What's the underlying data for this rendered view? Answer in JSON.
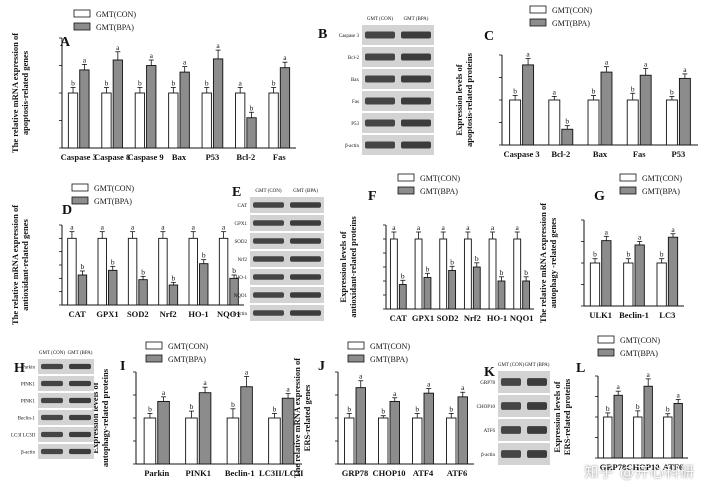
{
  "legend": {
    "con": "GMT(CON)",
    "bpa": "GMT(BPA)"
  },
  "colors": {
    "con": "#ffffff",
    "bpa": "#8c8c8c",
    "stroke": "#111111"
  },
  "watermark": "知乎 @开心科研",
  "chart_data": [
    {
      "id": "A",
      "type": "bar",
      "panel_label": "A",
      "ylabel": "The relative mRNA expression of apoptosis-related genes",
      "categories": [
        "Caspase 3",
        "Caspase 8",
        "Caspase 9",
        "Bax",
        "P53",
        "Bcl-2",
        "Fas"
      ],
      "ylim": [
        0,
        2.0
      ],
      "series": [
        {
          "name": "GMT(CON)",
          "values": [
            1.0,
            1.0,
            1.0,
            1.0,
            1.0,
            1.0,
            1.0
          ],
          "errors": [
            0.1,
            0.1,
            0.1,
            0.1,
            0.1,
            0.1,
            0.1
          ],
          "letters": [
            "b",
            "b",
            "b",
            "b",
            "b",
            "a",
            "b"
          ]
        },
        {
          "name": "GMT(BPA)",
          "values": [
            1.42,
            1.6,
            1.5,
            1.38,
            1.62,
            0.55,
            1.46
          ],
          "errors": [
            0.1,
            0.15,
            0.1,
            0.1,
            0.16,
            0.1,
            0.1
          ],
          "letters": [
            "a",
            "a",
            "a",
            "a",
            "a",
            "b",
            "a"
          ]
        }
      ]
    },
    {
      "id": "C",
      "type": "bar",
      "panel_label": "C",
      "ylabel": "Expression levels of apoptosis-related proteins",
      "categories": [
        "Caspase 3",
        "Bcl-2",
        "Bax",
        "Fas",
        "P53"
      ],
      "ylim": [
        0,
        2.0
      ],
      "series": [
        {
          "name": "GMT(CON)",
          "values": [
            1.0,
            1.0,
            1.0,
            1.0,
            1.0
          ],
          "errors": [
            0.1,
            0.08,
            0.1,
            0.15,
            0.08
          ],
          "letters": [
            "b",
            "a",
            "b",
            "b",
            "b"
          ]
        },
        {
          "name": "GMT(BPA)",
          "values": [
            1.78,
            0.35,
            1.62,
            1.55,
            1.48
          ],
          "errors": [
            0.14,
            0.08,
            0.12,
            0.15,
            0.1
          ],
          "letters": [
            "a",
            "b",
            "a",
            "a",
            "a"
          ]
        }
      ]
    },
    {
      "id": "D",
      "type": "bar",
      "panel_label": "D",
      "ylabel": "The relative mRNA expression of antioxidant-related genes",
      "categories": [
        "CAT",
        "GPX1",
        "SOD2",
        "Nrf2",
        "HO-1",
        "NQO1"
      ],
      "ylim": [
        0,
        1.2
      ],
      "series": [
        {
          "name": "GMT(CON)",
          "values": [
            1.0,
            1.0,
            1.0,
            1.0,
            1.0,
            1.0
          ],
          "errors": [
            0.1,
            0.1,
            0.1,
            0.1,
            0.1,
            0.1
          ],
          "letters": [
            "a",
            "a",
            "a",
            "a",
            "a",
            "a"
          ]
        },
        {
          "name": "GMT(BPA)",
          "values": [
            0.45,
            0.52,
            0.38,
            0.3,
            0.62,
            0.4
          ],
          "errors": [
            0.06,
            0.06,
            0.05,
            0.04,
            0.06,
            0.05
          ],
          "letters": [
            "b",
            "b",
            "b",
            "b",
            "b",
            "b"
          ]
        }
      ]
    },
    {
      "id": "F",
      "type": "bar",
      "panel_label": "F",
      "ylabel": "Expression levels of antioxidant-related proteins",
      "categories": [
        "CAT",
        "GPX1",
        "SOD2",
        "Nrf2",
        "HO-1",
        "NQO1"
      ],
      "ylim": [
        0,
        1.2
      ],
      "series": [
        {
          "name": "GMT(CON)",
          "values": [
            1.0,
            1.0,
            1.0,
            1.0,
            1.0,
            1.0
          ],
          "errors": [
            0.1,
            0.1,
            0.1,
            0.1,
            0.1,
            0.1
          ],
          "letters": [
            "a",
            "a",
            "a",
            "a",
            "a",
            "a"
          ]
        },
        {
          "name": "GMT(BPA)",
          "values": [
            0.35,
            0.45,
            0.55,
            0.6,
            0.4,
            0.4
          ],
          "errors": [
            0.06,
            0.06,
            0.06,
            0.06,
            0.06,
            0.06
          ],
          "letters": [
            "b",
            "b",
            "b",
            "b",
            "b",
            "b"
          ]
        }
      ]
    },
    {
      "id": "G",
      "type": "bar",
      "panel_label": "G",
      "ylabel": "The relative mRNA expression of autophagy -related genes",
      "categories": [
        "ULK1",
        "Beclin-1",
        "LC3"
      ],
      "ylim": [
        0,
        2.0
      ],
      "series": [
        {
          "name": "GMT(CON)",
          "values": [
            1.0,
            1.0,
            1.0
          ],
          "errors": [
            0.1,
            0.1,
            0.1
          ],
          "letters": [
            "b",
            "b",
            "b"
          ]
        },
        {
          "name": "GMT(BPA)",
          "values": [
            1.52,
            1.42,
            1.6
          ],
          "errors": [
            0.1,
            0.08,
            0.08
          ],
          "letters": [
            "a",
            "a",
            "a"
          ]
        }
      ]
    },
    {
      "id": "I",
      "type": "bar",
      "panel_label": "I",
      "ylabel": "Expression levels of autophagy-related proteins",
      "categories": [
        "Parkin",
        "PINK1",
        "Beclin-1",
        "LC3II/LC3I"
      ],
      "ylim": [
        0,
        2.0
      ],
      "series": [
        {
          "name": "GMT(CON)",
          "values": [
            1.0,
            1.0,
            1.0,
            1.0
          ],
          "errors": [
            0.1,
            0.15,
            0.2,
            0.1
          ],
          "letters": [
            "b",
            "b",
            "b",
            "b"
          ]
        },
        {
          "name": "GMT(BPA)",
          "values": [
            1.36,
            1.55,
            1.68,
            1.43
          ],
          "errors": [
            0.1,
            0.12,
            0.22,
            0.1
          ],
          "letters": [
            "a",
            "a",
            "a",
            "a"
          ]
        }
      ]
    },
    {
      "id": "J",
      "type": "bar",
      "panel_label": "J",
      "ylabel": "The relative mRNA expression of ERS-related genes",
      "categories": [
        "GRP78",
        "CHOP10",
        "ATF4",
        "ATF6"
      ],
      "ylim": [
        0,
        2.0
      ],
      "series": [
        {
          "name": "GMT(CON)",
          "values": [
            1.0,
            1.0,
            1.0,
            1.0
          ],
          "errors": [
            0.1,
            0.05,
            0.1,
            0.1
          ],
          "letters": [
            "b",
            "b",
            "b",
            "b"
          ]
        },
        {
          "name": "GMT(BPA)",
          "values": [
            1.66,
            1.36,
            1.54,
            1.46
          ],
          "errors": [
            0.15,
            0.08,
            0.1,
            0.1
          ],
          "letters": [
            "a",
            "a",
            "a",
            "a"
          ]
        }
      ]
    },
    {
      "id": "L",
      "type": "bar",
      "panel_label": "L",
      "ylabel": "Expression levels of ERS-related proteins",
      "categories": [
        "GRP78",
        "CHOP10",
        "ATF6"
      ],
      "ylim": [
        0,
        2.0
      ],
      "series": [
        {
          "name": "GMT(CON)",
          "values": [
            1.0,
            1.0,
            1.0
          ],
          "errors": [
            0.1,
            0.15,
            0.08
          ],
          "letters": [
            "b",
            "b",
            "b"
          ]
        },
        {
          "name": "GMT(BPA)",
          "values": [
            1.53,
            1.75,
            1.33
          ],
          "errors": [
            0.1,
            0.18,
            0.1
          ],
          "letters": [
            "a",
            "a",
            "a"
          ]
        }
      ]
    }
  ],
  "blots": [
    {
      "id": "B",
      "panel_label": "B",
      "header": [
        "GMT (CON)",
        "GMT (BPA)"
      ],
      "rows": [
        "Caspase 3",
        "Bcl-2",
        "Bax",
        "Fas",
        "P53",
        "β-actin"
      ]
    },
    {
      "id": "E",
      "panel_label": "E",
      "header": [
        "GMT (CON)",
        "GMT (BPA)"
      ],
      "rows": [
        "CAT",
        "GPX1",
        "SOD2",
        "Nrf2",
        "HO-1",
        "NQO1",
        "β-actin"
      ]
    },
    {
      "id": "H",
      "panel_label": "H",
      "header": [
        "GMT (CON)",
        "GMT (BPA)"
      ],
      "rows": [
        "Parkin",
        "PINK1",
        "PINK1",
        "Beclin-1",
        "LC3I LC3II",
        "β-actin"
      ]
    },
    {
      "id": "K",
      "panel_label": "K",
      "header": [
        "GMT (CON)",
        "GMT (BPA)"
      ],
      "rows": [
        "GRP78",
        "CHOP10",
        "ATF6",
        "β-actin"
      ]
    }
  ]
}
